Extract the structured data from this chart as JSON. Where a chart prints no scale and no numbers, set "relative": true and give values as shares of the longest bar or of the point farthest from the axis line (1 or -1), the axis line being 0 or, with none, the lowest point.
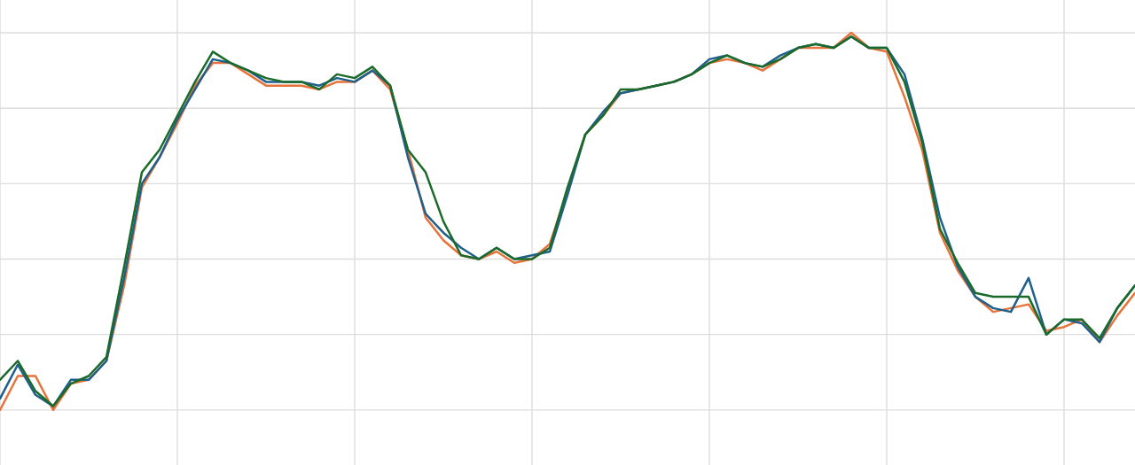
{
  "chart_data": {
    "type": "line",
    "relative": true,
    "grid": true,
    "tick_labels": false,
    "categories": [
      null,
      null,
      null,
      null,
      null,
      null,
      null,
      null,
      null,
      null,
      null,
      null,
      null,
      null,
      null,
      null,
      null,
      null,
      null,
      null,
      null,
      null,
      null,
      null,
      null,
      null,
      null,
      null,
      null,
      null,
      null,
      null,
      null,
      null,
      null,
      null,
      null,
      null,
      null,
      null,
      null,
      null,
      null,
      null,
      null,
      null,
      null,
      null,
      null,
      null,
      null,
      null,
      null,
      null,
      null,
      null,
      null,
      null,
      null,
      null,
      null,
      null,
      null,
      null,
      null
    ],
    "series": [
      {
        "color": "#e8733a",
        "values": [
          0.0,
          0.09,
          0.09,
          0,
          0.07,
          0.08,
          0.13,
          0.33,
          0.59,
          0.67,
          0.76,
          0.86,
          0.92,
          0.92,
          0.89,
          0.86,
          0.86,
          0.86,
          0.85,
          0.87,
          0.87,
          0.9,
          0.85,
          0.69,
          0.51,
          0.45,
          0.41,
          0.4,
          0.42,
          0.39,
          0.4,
          0.44,
          0.58,
          0.73,
          0.78,
          0.84,
          0.85,
          0.86,
          0.87,
          0.89,
          0.92,
          0.93,
          0.92,
          0.9,
          0.93,
          0.96,
          0.96,
          0.96,
          1.0,
          0.96,
          0.95,
          0.83,
          0.69,
          0.47,
          0.37,
          0.3,
          0.26,
          0.27,
          0.28,
          0.21,
          0.22,
          0.24,
          0.18,
          0.25,
          0.31
        ]
      },
      {
        "color": "#1f5f8b",
        "values": [
          0.03,
          0.12,
          0.04,
          0.01,
          0.08,
          0.08,
          0.13,
          0.35,
          0.6,
          0.67,
          0.77,
          0.85,
          0.93,
          0.92,
          0.9,
          0.87,
          0.87,
          0.87,
          0.86,
          0.88,
          0.87,
          0.9,
          0.86,
          0.67,
          0.52,
          0.47,
          0.43,
          0.4,
          0.43,
          0.4,
          0.41,
          0.42,
          0.57,
          0.73,
          0.79,
          0.84,
          0.85,
          0.86,
          0.87,
          0.89,
          0.93,
          0.94,
          0.92,
          0.91,
          0.94,
          0.96,
          0.97,
          0.96,
          0.99,
          0.96,
          0.96,
          0.89,
          0.72,
          0.51,
          0.38,
          0.3,
          0.27,
          0.26,
          0.35,
          0.2,
          0.24,
          0.23,
          0.18,
          0.27,
          0.33
        ]
      },
      {
        "color": "#1a6b2a",
        "values": [
          0.08,
          0.13,
          0.05,
          0.01,
          0.07,
          0.09,
          0.14,
          0.38,
          0.63,
          0.69,
          0.78,
          0.87,
          0.95,
          0.92,
          0.9,
          0.88,
          0.87,
          0.87,
          0.85,
          0.89,
          0.88,
          0.91,
          0.86,
          0.69,
          0.63,
          0.5,
          0.41,
          0.4,
          0.43,
          0.4,
          0.4,
          0.43,
          0.59,
          0.73,
          0.78,
          0.85,
          0.85,
          0.86,
          0.87,
          0.89,
          0.92,
          0.94,
          0.92,
          0.91,
          0.93,
          0.96,
          0.97,
          0.96,
          0.99,
          0.96,
          0.96,
          0.87,
          0.71,
          0.48,
          0.39,
          0.31,
          0.3,
          0.3,
          0.3,
          0.2,
          0.24,
          0.24,
          0.19,
          0.27,
          0.33
        ]
      }
    ]
  }
}
